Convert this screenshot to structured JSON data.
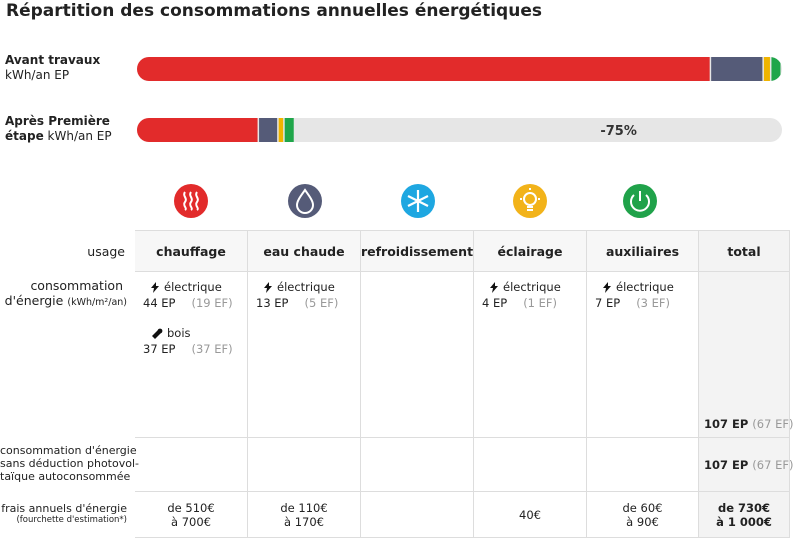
{
  "title": "Répartition des consommations annuelles énergétiques",
  "bars": {
    "xlim": [
      0,
      428
    ],
    "colors": [
      "#e22b2b",
      "#555b78",
      "#f0b400",
      "#1fa64a"
    ],
    "rows": [
      {
        "label": "Avant travaux",
        "unit": "kWh/an EP",
        "segments": [
          381,
          35,
          5,
          7
        ]
      },
      {
        "label": "Après Première étape",
        "unit": "kWh/an EP",
        "segments": [
          81,
          13,
          4,
          7
        ],
        "reduction": "-75%"
      }
    ]
  },
  "table": {
    "columns": [
      "usage",
      "chauffage",
      "eau chaude",
      "refroidissement",
      "éclairage",
      "auxiliaires",
      "total"
    ],
    "rows": [
      {
        "label": "consommation",
        "label2": "d'énergie",
        "sublabel": "(kWh/m²/an)",
        "cells": [
          [
            {
              "kind": "électrique",
              "ep": "44 EP",
              "ef": "(19 EF)"
            },
            {
              "kind": "bois",
              "ep": "37 EP",
              "ef": "(37 EF)"
            }
          ],
          [
            {
              "kind": "électrique",
              "ep": "13 EP",
              "ef": "(5 EF)"
            }
          ],
          [],
          [
            {
              "kind": "électrique",
              "ep": "4 EP",
              "ef": "(1 EF)"
            }
          ],
          [
            {
              "kind": "électrique",
              "ep": "7 EP",
              "ef": "(3 EF)"
            }
          ]
        ],
        "total": {
          "ep": "107 EP",
          "ef": "(67 EF)"
        }
      },
      {
        "label": "consommation d'énergie",
        "label2": "sans déduction photovol-",
        "sublabel": "taïque autoconsommée",
        "cells": [
          [],
          [],
          [],
          [],
          []
        ],
        "total": {
          "ep": "107 EP",
          "ef": "(67 EF)"
        }
      },
      {
        "label": "frais annuels d'énergie",
        "sublabel": "(fourchette d'estimation*)",
        "cells": [
          [
            "de 510€",
            "à 700€"
          ],
          [
            "de 110€",
            "à 170€"
          ],
          [],
          [
            "40€"
          ],
          [
            "de 60€",
            "à 90€"
          ]
        ],
        "total": [
          "de 730€",
          "à 1 000€"
        ]
      }
    ]
  }
}
